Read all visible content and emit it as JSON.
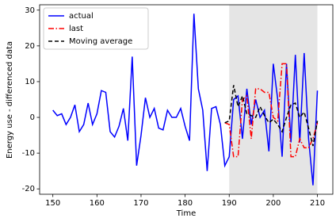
{
  "chart_data": {
    "type": "line",
    "xlabel": "Time",
    "ylabel": "Energy use - differenced data",
    "xlim": [
      147,
      213.5
    ],
    "ylim": [
      -21.5,
      31.5
    ],
    "xticks": [
      150,
      160,
      170,
      180,
      190,
      200,
      210
    ],
    "yticks": [
      -20,
      -10,
      0,
      10,
      20,
      30
    ],
    "shaded_span": [
      190,
      210
    ],
    "shade_color": "#e5e5e5",
    "legend_loc": "upper left",
    "series": [
      {
        "name": "actual",
        "color": "#0000ff",
        "linestyle": "solid",
        "x": [
          150,
          151,
          152,
          153,
          154,
          155,
          156,
          157,
          158,
          159,
          160,
          161,
          162,
          163,
          164,
          165,
          166,
          167,
          168,
          169,
          170,
          171,
          172,
          173,
          174,
          175,
          176,
          177,
          178,
          179,
          180,
          181,
          182,
          183,
          184,
          185,
          186,
          187,
          188,
          189,
          190,
          191,
          192,
          193,
          194,
          195,
          196,
          197,
          198,
          199,
          200,
          201,
          202,
          203,
          204,
          205,
          206,
          207,
          208,
          209,
          210
        ],
        "values": [
          2,
          0.5,
          1,
          -2,
          0,
          3.5,
          -4,
          -2,
          4,
          -2,
          1,
          7.5,
          7,
          -4,
          -5.5,
          -2.5,
          2.5,
          -6.5,
          17,
          -13.5,
          -5,
          5.5,
          0,
          2.5,
          -3,
          -3.5,
          2,
          0,
          0,
          2.5,
          -2.5,
          -6.5,
          29,
          8,
          2,
          -15,
          2.5,
          3,
          -2,
          -13.5,
          -11,
          5,
          6,
          -6,
          8,
          -2,
          5,
          0,
          2,
          -9.5,
          15,
          5,
          -11,
          15,
          -7,
          17.5,
          -7,
          18,
          -6,
          -19,
          7.5
        ]
      },
      {
        "name": "last",
        "color": "#ff0000",
        "linestyle": "dashdot",
        "x": [
          189,
          190,
          191,
          192,
          193,
          194,
          195,
          196,
          197,
          198,
          199,
          200,
          201,
          202,
          203,
          204,
          205,
          206,
          207,
          208,
          209,
          210
        ],
        "values": [
          -1.5,
          -2,
          -11,
          -11,
          5,
          6,
          -6,
          8,
          8,
          7,
          7,
          0,
          -1,
          15,
          15,
          -11,
          -11,
          -6,
          -8.5,
          -8.5,
          -6,
          -1.5
        ]
      },
      {
        "name": "Moving average",
        "color": "#000000",
        "linestyle": "dashed",
        "x": [
          189,
          190,
          191,
          192,
          193,
          194,
          195,
          196,
          197,
          198,
          199,
          200,
          201,
          202,
          203,
          204,
          205,
          206,
          207,
          208,
          209,
          210
        ],
        "values": [
          -1.5,
          -1,
          9,
          3,
          6,
          1,
          0.5,
          0,
          3,
          0.5,
          -1.5,
          -0.5,
          -2,
          -4,
          0,
          3.5,
          4,
          0,
          1.5,
          -3,
          -8,
          -1
        ]
      }
    ]
  }
}
